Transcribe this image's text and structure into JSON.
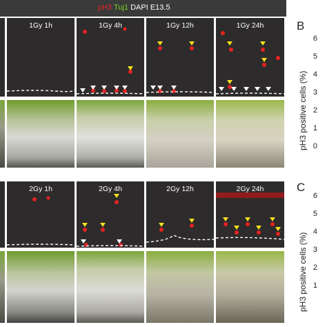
{
  "legend": {
    "ph3": "pH3",
    "tuj1": "Tuj1",
    "rest": "DAPI E13.5",
    "ph3_color": "#e52222",
    "tuj1_color": "#7ed321"
  },
  "rows": {
    "gy1": {
      "labels": [
        "1Gy 1h",
        "1Gy 4h",
        "1Gy 12h",
        "1Gy 24h"
      ]
    },
    "gy2": {
      "labels": [
        "2Gy 1h",
        "2Gy 4h",
        "2Gy 12h",
        "2Gy 24h"
      ]
    }
  },
  "panel_B": {
    "letter": "B",
    "ylabel": "pH3 positive cells (%)",
    "ticks": [
      "6",
      "5",
      "4",
      "3",
      "2",
      "1",
      "0"
    ]
  },
  "panel_C": {
    "letter": "C",
    "ylabel": "pH3 positive cells (%)",
    "ticks": [
      "6",
      "5",
      "4",
      "3",
      "2",
      "1"
    ]
  }
}
